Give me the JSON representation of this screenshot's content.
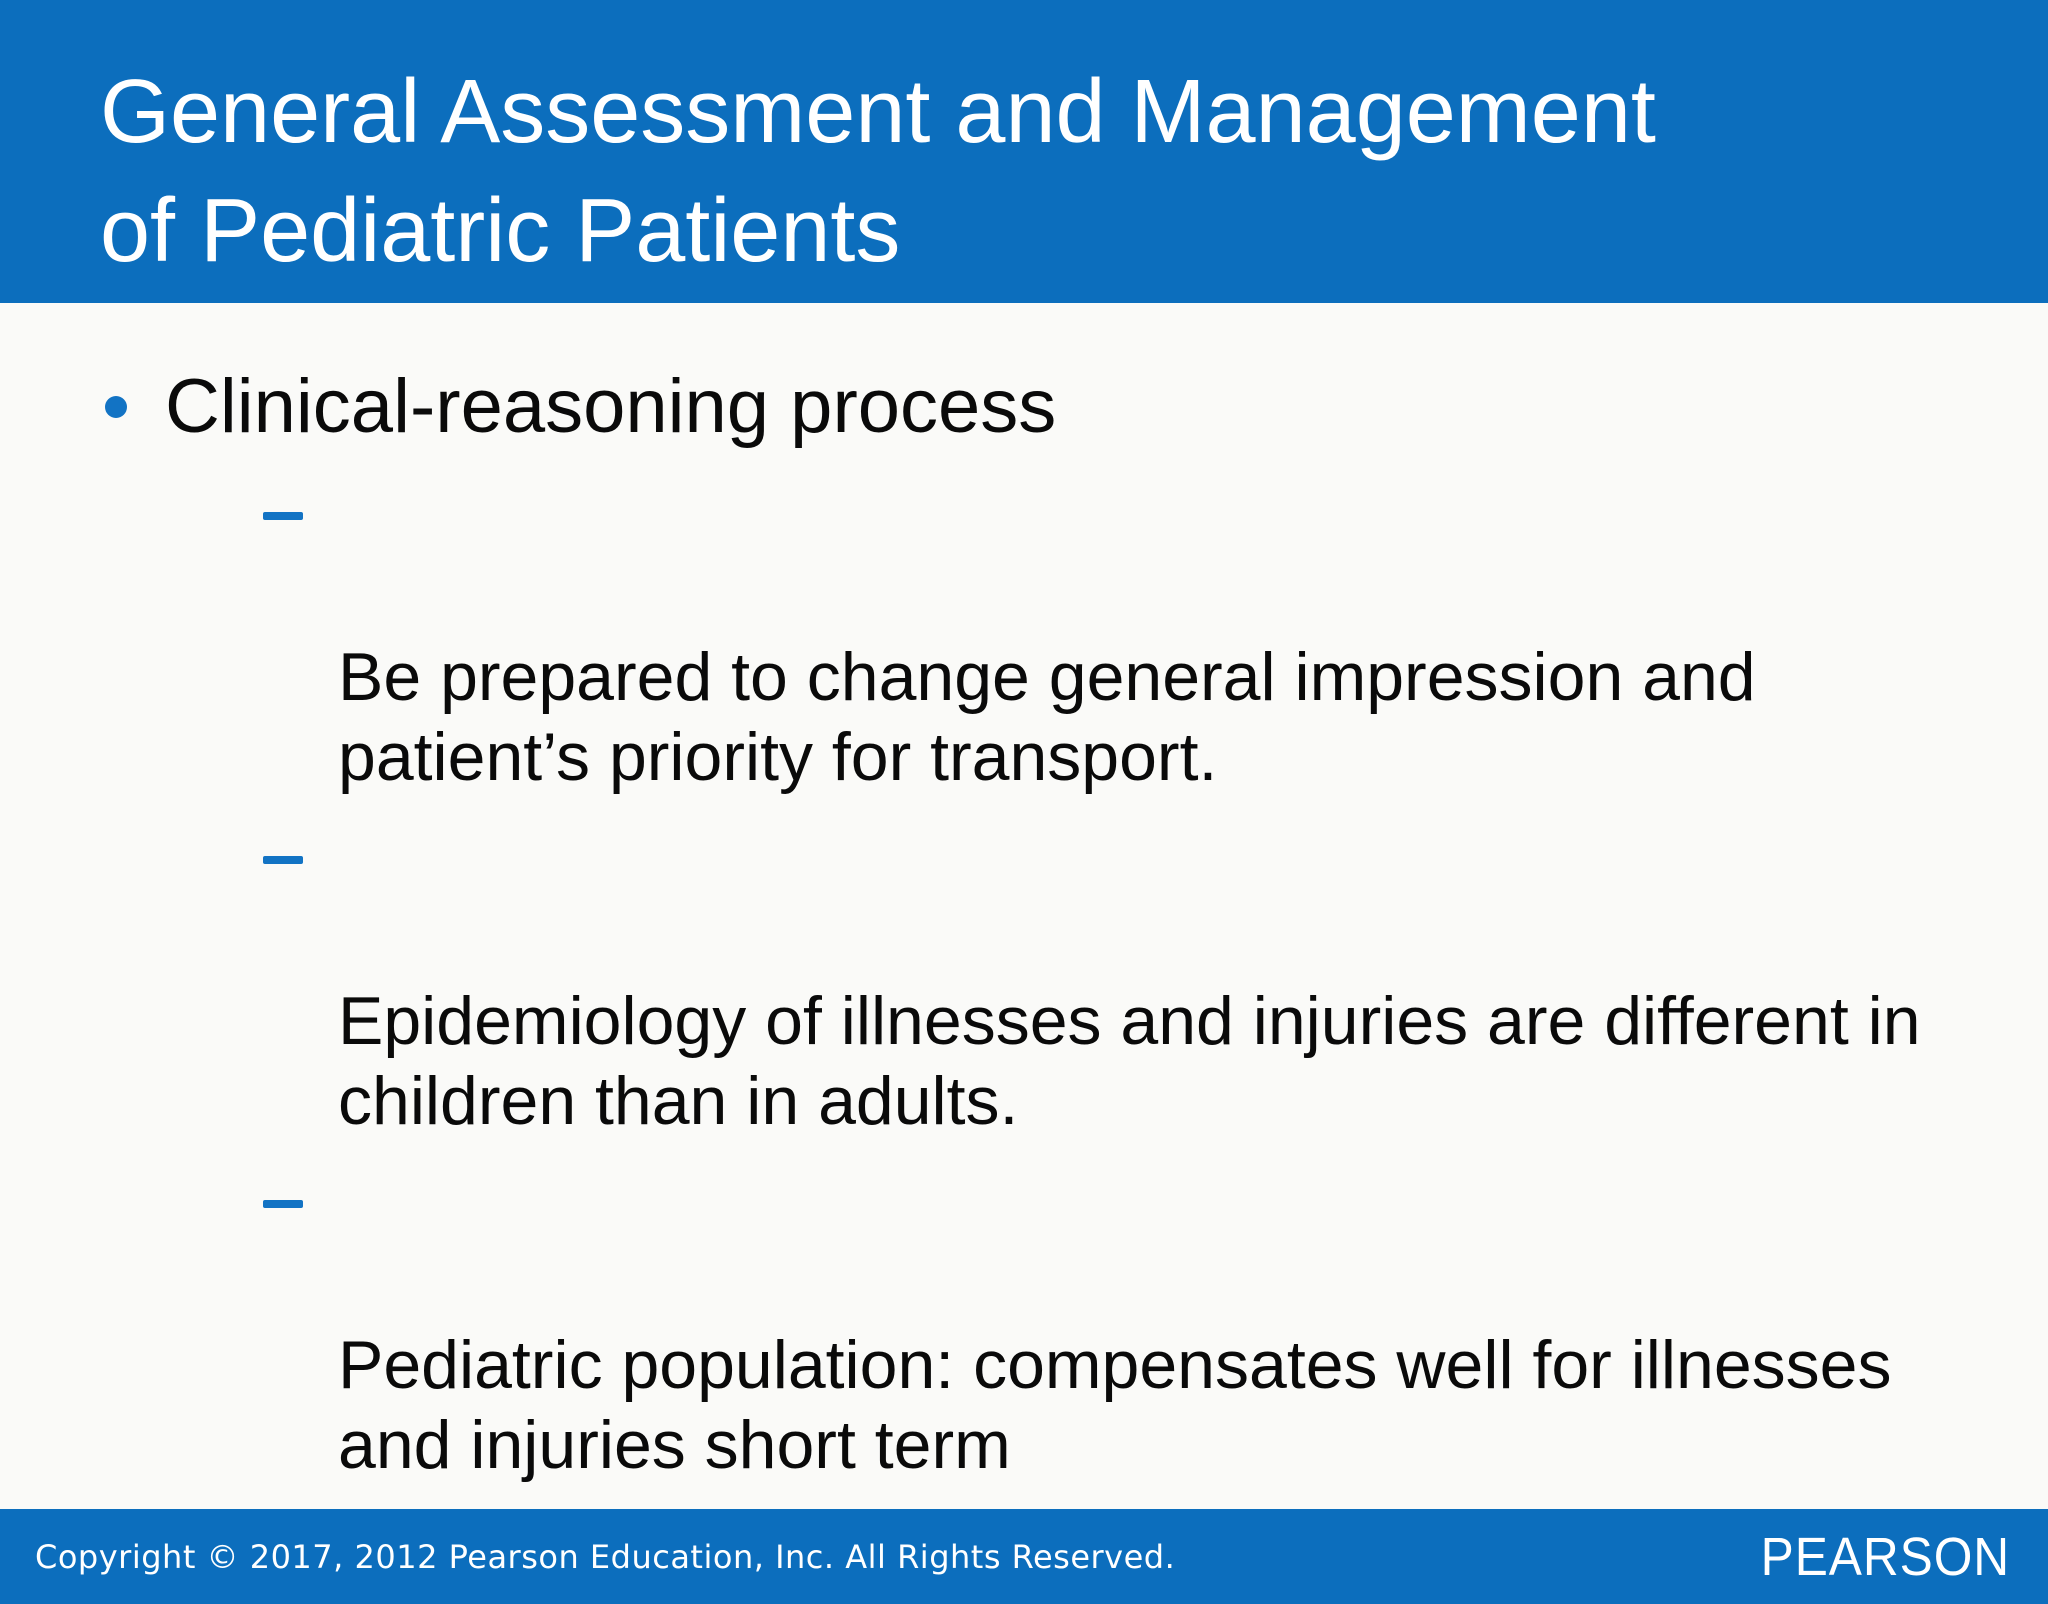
{
  "slide": {
    "title_lines": [
      "General Assessment and Management",
      "of Pediatric Patients"
    ],
    "band_color": "#0c6ebd",
    "accent_color": "#1273c4"
  },
  "content": {
    "bullets": [
      {
        "label": "Clinical-reasoning process",
        "sub_items": [
          "Be prepared to change general impression and\npatient’s priority for transport.",
          "Epidemiology of illnesses and injuries are different in\nchildren than in adults.",
          "Pediatric population: compensates well for illnesses\nand injuries short term"
        ]
      }
    ]
  },
  "footer": {
    "copyright": "Copyright © 2017, 2012 Pearson Education, Inc. All Rights Reserved.",
    "brand": "PEARSON"
  }
}
